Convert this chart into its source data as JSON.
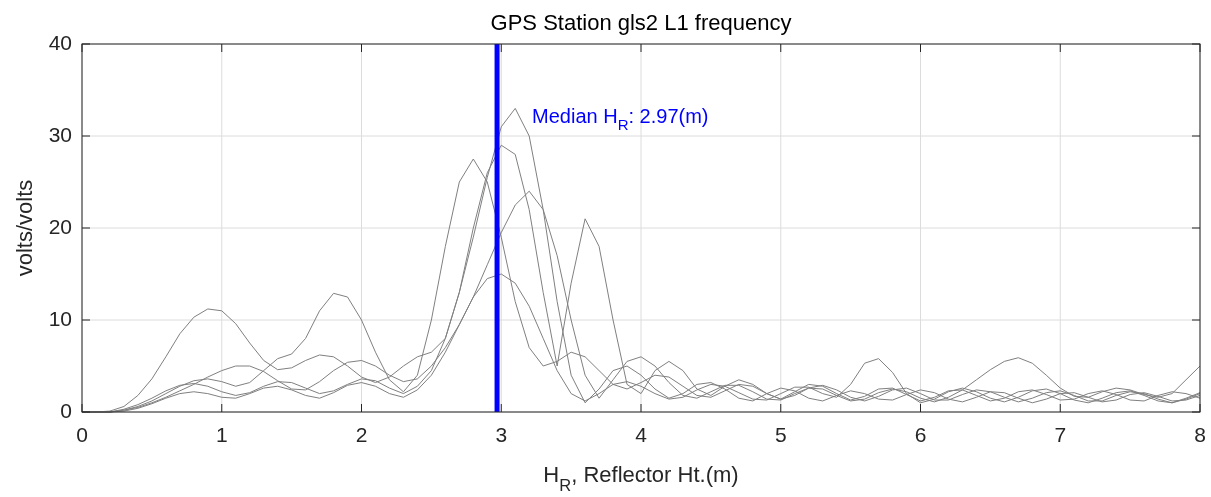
{
  "chart_data": {
    "type": "line",
    "title": "GPS Station gls2 L1 frequency",
    "xlabel": "H$_{R}$, Reflector Ht.(m)",
    "ylabel": "volts/volts",
    "xlim": [
      0,
      8
    ],
    "xticks": [
      0,
      1,
      2,
      3,
      4,
      5,
      6,
      7,
      8
    ],
    "ylim": [
      0,
      40
    ],
    "yticks": [
      0,
      10,
      20,
      30,
      40
    ],
    "grid": true,
    "x": [
      0,
      0.1,
      0.2,
      0.3,
      0.4,
      0.5,
      0.6,
      0.7,
      0.8,
      0.9,
      1,
      1.1,
      1.2,
      1.3,
      1.4,
      1.5,
      1.6,
      1.7,
      1.8,
      1.9,
      2,
      2.1,
      2.2,
      2.3,
      2.4,
      2.5,
      2.6,
      2.7,
      2.8,
      2.9,
      3,
      3.1,
      3.2,
      3.3,
      3.4,
      3.5,
      3.6,
      3.7,
      3.8,
      3.9,
      4,
      4.1,
      4.2,
      4.3,
      4.4,
      4.5,
      4.6,
      4.7,
      4.8,
      4.9,
      5,
      5.1,
      5.2,
      5.3,
      5.4,
      5.5,
      5.6,
      5.7,
      5.8,
      5.9,
      6,
      6.1,
      6.2,
      6.3,
      6.4,
      6.5,
      6.6,
      6.7,
      6.8,
      6.9,
      7,
      7.1,
      7.2,
      7.3,
      7.4,
      7.5,
      7.6,
      7.7,
      7.8,
      7.9,
      8
    ],
    "series": [
      {
        "color": "#808080",
        "values": [
          0,
          0,
          0,
          0.3,
          0.8,
          1.5,
          2.3,
          2.9,
          3.1,
          2.8,
          2.2,
          1.8,
          2.1,
          2.8,
          3.3,
          3.2,
          2.6,
          2,
          2.3,
          3,
          3.6,
          3.4,
          2.6,
          2,
          2.8,
          4.5,
          8,
          13,
          19,
          25.5,
          31,
          33,
          30,
          22,
          12,
          4,
          1,
          2.5,
          4.5,
          5,
          4,
          2.5,
          1.5,
          2,
          3,
          3.2,
          2.5,
          1.5,
          1.2,
          2,
          2.6,
          2.3,
          1.5,
          1.2,
          1.8,
          2.3,
          2,
          1.4,
          1.3,
          1.9,
          2.4,
          2.1,
          1.4,
          1.1,
          1.6,
          2.2,
          2.1,
          1.5,
          1,
          1.4,
          2,
          2.1,
          1.6,
          1.1,
          1.3,
          1.9,
          2.1,
          1.7,
          1.2,
          1.3,
          1.8
        ]
      },
      {
        "color": "#808080",
        "values": [
          0,
          0,
          0.1,
          0.6,
          1.8,
          3.6,
          6,
          8.5,
          10.3,
          11.2,
          11,
          9.6,
          7.5,
          5.6,
          4.6,
          4.8,
          5.6,
          6.2,
          6,
          5,
          3.8,
          3.2,
          3.8,
          5,
          6,
          6.5,
          8,
          13,
          20,
          26,
          29,
          28,
          22,
          13,
          5,
          14,
          21,
          18,
          10,
          3,
          2,
          4.5,
          5.5,
          4.5,
          2.5,
          1.8,
          2.8,
          3.5,
          3,
          2,
          1.4,
          2.2,
          3,
          2.8,
          2,
          1.3,
          1.7,
          2.5,
          2.6,
          1.9,
          1.2,
          1.6,
          2.3,
          2.4,
          1.8,
          1.2,
          1.5,
          2.2,
          2.4,
          1.9,
          1.3,
          1.4,
          2,
          2.3,
          1.9,
          1.3,
          1.2,
          1.8,
          2.2,
          2,
          1.5
        ]
      },
      {
        "color": "#808080",
        "values": [
          0,
          0,
          0,
          0.2,
          0.6,
          1.2,
          2,
          2.8,
          3.4,
          3.6,
          3.3,
          2.8,
          3.2,
          4.5,
          5.8,
          6.3,
          8,
          11,
          12.9,
          12.5,
          10,
          6.5,
          3.5,
          2.2,
          4,
          10,
          18,
          25,
          27.5,
          25,
          19,
          12,
          7,
          5,
          5.5,
          6.5,
          6,
          4.5,
          3,
          2.5,
          3.2,
          4,
          3.8,
          2.8,
          1.8,
          1.6,
          2.3,
          3,
          2.8,
          2,
          1.4,
          1.8,
          2.6,
          2.9,
          2.4,
          1.6,
          1.2,
          1.7,
          2.4,
          2.6,
          2,
          1.3,
          1.3,
          1.9,
          2.4,
          2.2,
          1.6,
          1.1,
          1.5,
          2.1,
          2.3,
          1.8,
          1.2,
          1.2,
          1.8,
          2.2,
          2,
          1.4,
          1,
          1.4,
          2
        ]
      },
      {
        "color": "#808080",
        "values": [
          0,
          0,
          0,
          0.1,
          0.4,
          0.9,
          1.5,
          2,
          2.2,
          2,
          1.6,
          1.5,
          2,
          2.6,
          2.8,
          2.4,
          1.8,
          1.5,
          2.1,
          2.9,
          3.2,
          2.8,
          2,
          1.6,
          2.4,
          4,
          6.5,
          9.5,
          12.5,
          14.5,
          15,
          14,
          11.5,
          8,
          4.5,
          2,
          1.2,
          2,
          3,
          3.3,
          2.8,
          2,
          1.4,
          1.6,
          2.4,
          3,
          2.8,
          2.1,
          1.4,
          1.3,
          2,
          2.7,
          2.7,
          2,
          1.6,
          3,
          5.3,
          5.8,
          4.3,
          2,
          1,
          1.4,
          2.2,
          2.6,
          2.2,
          1.5,
          1.1,
          1.6,
          2.3,
          2.5,
          2,
          1.3,
          1,
          1.5,
          2.1,
          2.3,
          1.8,
          1.2,
          1,
          1.5,
          2.1
        ]
      },
      {
        "color": "#808080",
        "values": [
          0,
          0,
          0,
          0.2,
          0.5,
          1,
          1.6,
          2.3,
          3,
          3.8,
          4.5,
          5,
          5,
          4.4,
          3.4,
          2.5,
          2.4,
          3.3,
          4.5,
          5.4,
          5.6,
          5,
          4,
          3.3,
          3.6,
          5,
          7,
          9.5,
          12.5,
          16,
          19.5,
          22.5,
          24,
          22,
          17,
          10,
          4,
          1.5,
          3.5,
          5.5,
          6,
          5,
          3.2,
          1.8,
          1.5,
          2.2,
          2.9,
          2.9,
          2.2,
          1.4,
          1.3,
          2,
          2.6,
          2.5,
          1.8,
          1.2,
          1.4,
          2.1,
          2.5,
          2.2,
          1.5,
          1.1,
          1.6,
          2.4,
          3.5,
          4.6,
          5.5,
          5.9,
          5.3,
          4,
          2.6,
          1.7,
          1.6,
          2.2,
          2.6,
          2.4,
          1.9,
          1.6,
          2,
          3.5,
          5
        ]
      }
    ],
    "ref_lines": [
      {
        "axis": "x",
        "value": 2.97,
        "label": "Median H$_{R}$: 2.97(m)",
        "color": "#0000ff",
        "line_style": "solid"
      }
    ]
  }
}
